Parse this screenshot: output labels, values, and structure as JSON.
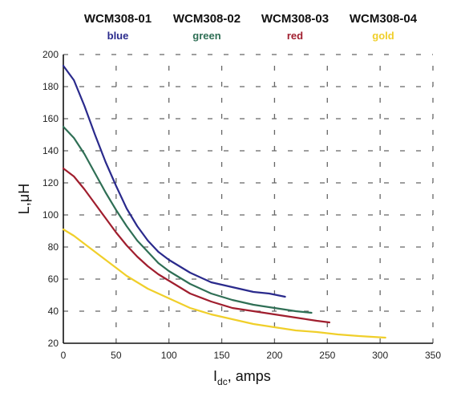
{
  "chart_data": {
    "type": "line",
    "xlabel": "I",
    "xlabel_sub": "dc",
    "xlabel_rest": ", amps",
    "ylabel": "L,μH",
    "xlim": [
      0,
      350
    ],
    "ylim": [
      20,
      200
    ],
    "x_ticks": [
      "0",
      "50",
      "100",
      "150",
      "200",
      "250",
      "300",
      "350"
    ],
    "y_ticks": [
      "20",
      "40",
      "60",
      "80",
      "100",
      "120",
      "140",
      "160",
      "180",
      "200"
    ],
    "grid": "dashed",
    "legend_placement": "top",
    "series": [
      {
        "name": "WCM308-01",
        "color_label": "blue",
        "color": "#2a2a8c",
        "points": [
          [
            0,
            193
          ],
          [
            10,
            184
          ],
          [
            20,
            168
          ],
          [
            30,
            150
          ],
          [
            40,
            133
          ],
          [
            50,
            118
          ],
          [
            60,
            104
          ],
          [
            70,
            93
          ],
          [
            80,
            84
          ],
          [
            90,
            77
          ],
          [
            100,
            72
          ],
          [
            120,
            64
          ],
          [
            140,
            58
          ],
          [
            160,
            55
          ],
          [
            180,
            52
          ],
          [
            195,
            51
          ],
          [
            210,
            49
          ]
        ]
      },
      {
        "name": "WCM308-02",
        "color_label": "green",
        "color": "#2f6f55",
        "points": [
          [
            0,
            155
          ],
          [
            10,
            148
          ],
          [
            20,
            138
          ],
          [
            30,
            126
          ],
          [
            40,
            114
          ],
          [
            50,
            103
          ],
          [
            60,
            93
          ],
          [
            70,
            84
          ],
          [
            80,
            77
          ],
          [
            90,
            70
          ],
          [
            100,
            65
          ],
          [
            120,
            57
          ],
          [
            140,
            51
          ],
          [
            160,
            47
          ],
          [
            180,
            44
          ],
          [
            200,
            42
          ],
          [
            220,
            40
          ],
          [
            235,
            39
          ]
        ]
      },
      {
        "name": "WCM308-03",
        "color_label": "red",
        "color": "#a01e2e",
        "points": [
          [
            0,
            129
          ],
          [
            10,
            124
          ],
          [
            20,
            116
          ],
          [
            30,
            107
          ],
          [
            40,
            98
          ],
          [
            50,
            89
          ],
          [
            60,
            81
          ],
          [
            70,
            74
          ],
          [
            80,
            68
          ],
          [
            90,
            63
          ],
          [
            100,
            59
          ],
          [
            120,
            51
          ],
          [
            140,
            46
          ],
          [
            160,
            42
          ],
          [
            180,
            40
          ],
          [
            200,
            38
          ],
          [
            220,
            36
          ],
          [
            240,
            34
          ],
          [
            252,
            33
          ]
        ]
      },
      {
        "name": "WCM308-04",
        "color_label": "gold",
        "color": "#f0cf2a",
        "points": [
          [
            0,
            91
          ],
          [
            10,
            87
          ],
          [
            20,
            82
          ],
          [
            30,
            77
          ],
          [
            40,
            72
          ],
          [
            50,
            67
          ],
          [
            60,
            62
          ],
          [
            70,
            58
          ],
          [
            80,
            54
          ],
          [
            90,
            51
          ],
          [
            100,
            48
          ],
          [
            120,
            42
          ],
          [
            140,
            38
          ],
          [
            160,
            35
          ],
          [
            180,
            32
          ],
          [
            200,
            30
          ],
          [
            220,
            28
          ],
          [
            240,
            27
          ],
          [
            260,
            25.5
          ],
          [
            280,
            24.5
          ],
          [
            305,
            23.5
          ]
        ]
      }
    ]
  }
}
